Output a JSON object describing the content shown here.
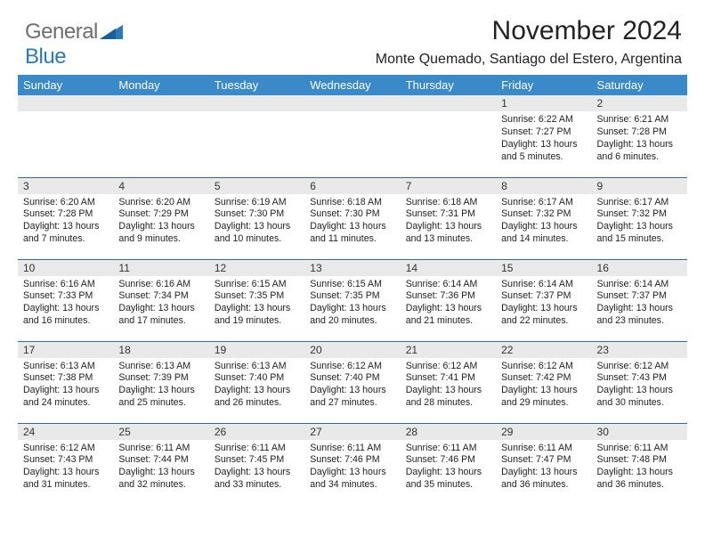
{
  "brand": {
    "text_gray": "General",
    "text_blue": "Blue"
  },
  "title": "November 2024",
  "subtitle": "Monte Quemado, Santiago del Estero, Argentina",
  "colors": {
    "header_bg": "#3a89c9",
    "header_text": "#ffffff",
    "daynum_bg": "#e9e9e9",
    "rule": "#2f6fa3",
    "body_text": "#222222",
    "logo_gray": "#6f6f6f",
    "logo_blue": "#2a7ab9",
    "page_bg": "#ffffff"
  },
  "typography": {
    "title_fontsize": 30,
    "subtitle_fontsize": 16,
    "dayheader_fontsize": 13,
    "daynum_fontsize": 12,
    "cell_fontsize": 10.6,
    "font_family": "Arial"
  },
  "calendar": {
    "type": "table",
    "columns": [
      "Sunday",
      "Monday",
      "Tuesday",
      "Wednesday",
      "Thursday",
      "Friday",
      "Saturday"
    ],
    "weeks": [
      [
        null,
        null,
        null,
        null,
        null,
        {
          "d": "1",
          "sunrise": "Sunrise: 6:22 AM",
          "sunset": "Sunset: 7:27 PM",
          "daylight": "Daylight: 13 hours and 5 minutes."
        },
        {
          "d": "2",
          "sunrise": "Sunrise: 6:21 AM",
          "sunset": "Sunset: 7:28 PM",
          "daylight": "Daylight: 13 hours and 6 minutes."
        }
      ],
      [
        {
          "d": "3",
          "sunrise": "Sunrise: 6:20 AM",
          "sunset": "Sunset: 7:28 PM",
          "daylight": "Daylight: 13 hours and 7 minutes."
        },
        {
          "d": "4",
          "sunrise": "Sunrise: 6:20 AM",
          "sunset": "Sunset: 7:29 PM",
          "daylight": "Daylight: 13 hours and 9 minutes."
        },
        {
          "d": "5",
          "sunrise": "Sunrise: 6:19 AM",
          "sunset": "Sunset: 7:30 PM",
          "daylight": "Daylight: 13 hours and 10 minutes."
        },
        {
          "d": "6",
          "sunrise": "Sunrise: 6:18 AM",
          "sunset": "Sunset: 7:30 PM",
          "daylight": "Daylight: 13 hours and 11 minutes."
        },
        {
          "d": "7",
          "sunrise": "Sunrise: 6:18 AM",
          "sunset": "Sunset: 7:31 PM",
          "daylight": "Daylight: 13 hours and 13 minutes."
        },
        {
          "d": "8",
          "sunrise": "Sunrise: 6:17 AM",
          "sunset": "Sunset: 7:32 PM",
          "daylight": "Daylight: 13 hours and 14 minutes."
        },
        {
          "d": "9",
          "sunrise": "Sunrise: 6:17 AM",
          "sunset": "Sunset: 7:32 PM",
          "daylight": "Daylight: 13 hours and 15 minutes."
        }
      ],
      [
        {
          "d": "10",
          "sunrise": "Sunrise: 6:16 AM",
          "sunset": "Sunset: 7:33 PM",
          "daylight": "Daylight: 13 hours and 16 minutes."
        },
        {
          "d": "11",
          "sunrise": "Sunrise: 6:16 AM",
          "sunset": "Sunset: 7:34 PM",
          "daylight": "Daylight: 13 hours and 17 minutes."
        },
        {
          "d": "12",
          "sunrise": "Sunrise: 6:15 AM",
          "sunset": "Sunset: 7:35 PM",
          "daylight": "Daylight: 13 hours and 19 minutes."
        },
        {
          "d": "13",
          "sunrise": "Sunrise: 6:15 AM",
          "sunset": "Sunset: 7:35 PM",
          "daylight": "Daylight: 13 hours and 20 minutes."
        },
        {
          "d": "14",
          "sunrise": "Sunrise: 6:14 AM",
          "sunset": "Sunset: 7:36 PM",
          "daylight": "Daylight: 13 hours and 21 minutes."
        },
        {
          "d": "15",
          "sunrise": "Sunrise: 6:14 AM",
          "sunset": "Sunset: 7:37 PM",
          "daylight": "Daylight: 13 hours and 22 minutes."
        },
        {
          "d": "16",
          "sunrise": "Sunrise: 6:14 AM",
          "sunset": "Sunset: 7:37 PM",
          "daylight": "Daylight: 13 hours and 23 minutes."
        }
      ],
      [
        {
          "d": "17",
          "sunrise": "Sunrise: 6:13 AM",
          "sunset": "Sunset: 7:38 PM",
          "daylight": "Daylight: 13 hours and 24 minutes."
        },
        {
          "d": "18",
          "sunrise": "Sunrise: 6:13 AM",
          "sunset": "Sunset: 7:39 PM",
          "daylight": "Daylight: 13 hours and 25 minutes."
        },
        {
          "d": "19",
          "sunrise": "Sunrise: 6:13 AM",
          "sunset": "Sunset: 7:40 PM",
          "daylight": "Daylight: 13 hours and 26 minutes."
        },
        {
          "d": "20",
          "sunrise": "Sunrise: 6:12 AM",
          "sunset": "Sunset: 7:40 PM",
          "daylight": "Daylight: 13 hours and 27 minutes."
        },
        {
          "d": "21",
          "sunrise": "Sunrise: 6:12 AM",
          "sunset": "Sunset: 7:41 PM",
          "daylight": "Daylight: 13 hours and 28 minutes."
        },
        {
          "d": "22",
          "sunrise": "Sunrise: 6:12 AM",
          "sunset": "Sunset: 7:42 PM",
          "daylight": "Daylight: 13 hours and 29 minutes."
        },
        {
          "d": "23",
          "sunrise": "Sunrise: 6:12 AM",
          "sunset": "Sunset: 7:43 PM",
          "daylight": "Daylight: 13 hours and 30 minutes."
        }
      ],
      [
        {
          "d": "24",
          "sunrise": "Sunrise: 6:12 AM",
          "sunset": "Sunset: 7:43 PM",
          "daylight": "Daylight: 13 hours and 31 minutes."
        },
        {
          "d": "25",
          "sunrise": "Sunrise: 6:11 AM",
          "sunset": "Sunset: 7:44 PM",
          "daylight": "Daylight: 13 hours and 32 minutes."
        },
        {
          "d": "26",
          "sunrise": "Sunrise: 6:11 AM",
          "sunset": "Sunset: 7:45 PM",
          "daylight": "Daylight: 13 hours and 33 minutes."
        },
        {
          "d": "27",
          "sunrise": "Sunrise: 6:11 AM",
          "sunset": "Sunset: 7:46 PM",
          "daylight": "Daylight: 13 hours and 34 minutes."
        },
        {
          "d": "28",
          "sunrise": "Sunrise: 6:11 AM",
          "sunset": "Sunset: 7:46 PM",
          "daylight": "Daylight: 13 hours and 35 minutes."
        },
        {
          "d": "29",
          "sunrise": "Sunrise: 6:11 AM",
          "sunset": "Sunset: 7:47 PM",
          "daylight": "Daylight: 13 hours and 36 minutes."
        },
        {
          "d": "30",
          "sunrise": "Sunrise: 6:11 AM",
          "sunset": "Sunset: 7:48 PM",
          "daylight": "Daylight: 13 hours and 36 minutes."
        }
      ]
    ]
  }
}
